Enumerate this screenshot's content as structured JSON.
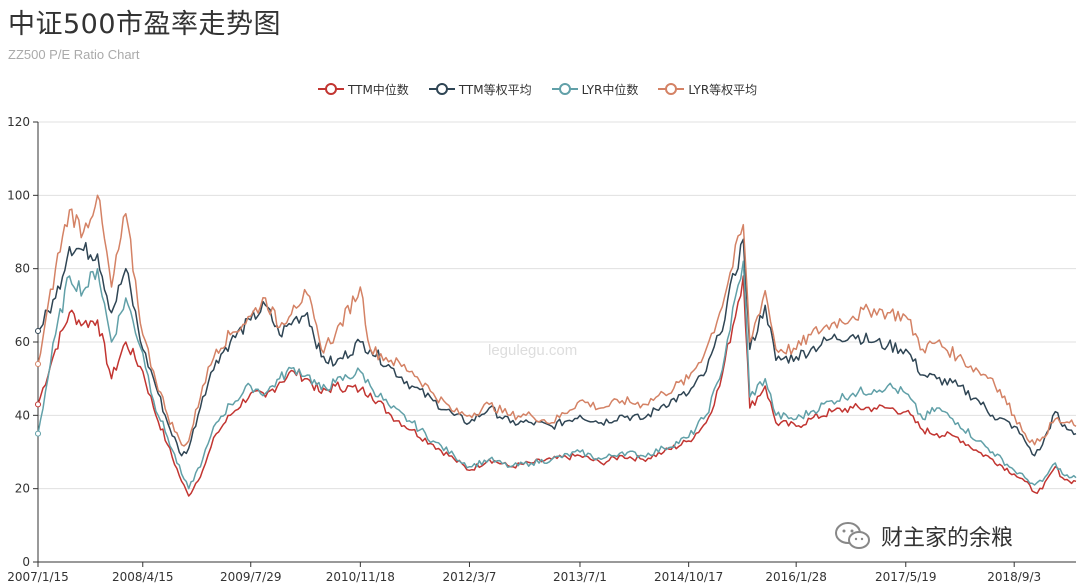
{
  "title": "中证500市盈率走势图",
  "subtitle": "ZZ500 P/E Ratio Chart",
  "watermark_site": "legulegu.com",
  "watermark_account": "财主家的余粮",
  "colors": {
    "ttm_median": "#c23531",
    "ttm_equal": "#2f4554",
    "lyr_median": "#61a0a8",
    "lyr_equal": "#d48265",
    "axis": "#333333",
    "grid": "#e0e0e0"
  },
  "chart_data": {
    "type": "line",
    "title": "中证500市盈率走势图",
    "subtitle": "ZZ500 P/E Ratio Chart",
    "ylim": [
      0,
      120
    ],
    "y_ticks": [
      "0",
      "20",
      "40",
      "60",
      "80",
      "100",
      "120"
    ],
    "x_tick_labels": [
      "2007/1/15",
      "2008/4/15",
      "2009/7/29",
      "2010/11/18",
      "2012/3/7",
      "2013/7/1",
      "2014/10/17",
      "2016/1/28",
      "2017/5/19",
      "2018/9/3"
    ],
    "x": [
      "2007/1/15",
      "2007/4/1",
      "2007/6/1",
      "2007/8/1",
      "2007/10/1",
      "2007/12/1",
      "2008/2/1",
      "2008/4/15",
      "2008/6/1",
      "2008/8/1",
      "2008/10/1",
      "2008/11/1",
      "2009/1/1",
      "2009/3/1",
      "2009/5/1",
      "2009/7/29",
      "2009/10/1",
      "2009/12/1",
      "2010/2/1",
      "2010/4/1",
      "2010/6/1",
      "2010/8/1",
      "2010/11/18",
      "2011/1/1",
      "2011/4/1",
      "2011/7/1",
      "2011/10/1",
      "2012/1/1",
      "2012/3/7",
      "2012/6/1",
      "2012/9/1",
      "2012/12/1",
      "2013/3/1",
      "2013/7/1",
      "2013/10/1",
      "2014/1/1",
      "2014/4/1",
      "2014/7/1",
      "2014/10/17",
      "2015/1/1",
      "2015/3/1",
      "2015/6/12",
      "2015/7/10",
      "2015/9/15",
      "2015/11/1",
      "2016/1/28",
      "2016/4/1",
      "2016/7/1",
      "2016/10/1",
      "2017/1/1",
      "2017/3/1",
      "2017/5/19",
      "2017/8/1",
      "2017/10/1",
      "2018/1/1",
      "2018/4/1",
      "2018/6/1",
      "2018/9/3",
      "2018/10/20",
      "2018/12/1",
      "2019/1/4",
      "2019/3/1",
      "2019/4/1",
      "2019/5/1",
      "2019/5/30"
    ],
    "series": [
      {
        "name": "TTM中位数",
        "color_key": "ttm_median",
        "values": [
          43,
          58,
          68,
          65,
          66,
          50,
          60,
          52,
          42,
          32,
          22,
          18,
          25,
          35,
          40,
          46,
          45,
          49,
          52,
          50,
          46,
          48,
          47,
          46,
          40,
          36,
          32,
          28,
          25,
          28,
          26,
          27,
          28,
          29,
          27,
          29,
          28,
          30,
          33,
          38,
          48,
          78,
          42,
          48,
          38,
          37,
          39,
          41,
          42,
          42,
          42,
          41,
          36,
          35,
          34,
          30,
          28,
          24,
          22,
          19,
          20,
          26,
          23,
          22,
          22
        ]
      },
      {
        "name": "TTM等权平均",
        "color_key": "ttm_equal",
        "values": [
          63,
          72,
          86,
          85,
          84,
          68,
          80,
          58,
          50,
          38,
          29,
          31,
          45,
          55,
          60,
          66,
          70,
          62,
          66,
          68,
          56,
          54,
          60,
          58,
          53,
          48,
          44,
          40,
          38,
          42,
          38,
          38,
          37,
          40,
          38,
          40,
          39,
          43,
          46,
          52,
          62,
          88,
          58,
          70,
          55,
          56,
          58,
          61,
          62,
          60,
          59,
          58,
          51,
          50,
          48,
          44,
          40,
          37,
          33,
          29,
          32,
          41,
          37,
          36,
          35
        ]
      },
      {
        "name": "LYR中位数",
        "color_key": "lyr_median",
        "values": [
          35,
          62,
          78,
          74,
          80,
          60,
          72,
          57,
          44,
          34,
          24,
          20,
          28,
          38,
          43,
          48,
          46,
          50,
          53,
          51,
          47,
          49,
          52,
          48,
          42,
          38,
          33,
          29,
          26,
          28,
          26,
          27,
          28,
          30,
          28,
          30,
          29,
          31,
          34,
          40,
          50,
          82,
          45,
          50,
          40,
          39,
          41,
          44,
          46,
          47,
          48,
          46,
          39,
          42,
          38,
          33,
          30,
          25,
          23,
          21,
          22,
          27,
          24,
          23,
          23
        ]
      },
      {
        "name": "LYR等权平均",
        "color_key": "lyr_equal",
        "values": [
          54,
          80,
          96,
          90,
          100,
          75,
          95,
          62,
          52,
          40,
          32,
          33,
          48,
          58,
          62,
          67,
          72,
          64,
          70,
          73,
          58,
          62,
          75,
          58,
          55,
          52,
          46,
          41,
          40,
          43,
          40,
          40,
          38,
          44,
          42,
          44,
          43,
          46,
          50,
          58,
          68,
          92,
          60,
          74,
          58,
          58,
          62,
          65,
          67,
          69,
          68,
          67,
          58,
          60,
          56,
          52,
          50,
          40,
          35,
          32,
          34,
          39,
          38,
          38,
          37
        ]
      }
    ],
    "legend": "top-center",
    "grid": true
  }
}
